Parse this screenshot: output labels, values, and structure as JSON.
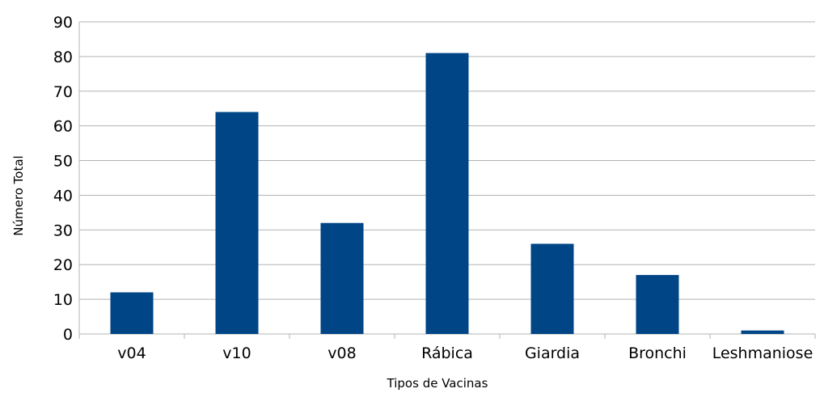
{
  "chart_data": {
    "type": "bar",
    "categories": [
      "v04",
      "v10",
      "v08",
      "Rábica",
      "Giardia",
      "Bronchi",
      "Leshmaniose"
    ],
    "values": [
      12,
      64,
      32,
      81,
      26,
      17,
      1
    ],
    "xlabel": "Tipos de Vacinas",
    "ylabel": "Número Total",
    "ylim": [
      0,
      90
    ],
    "yticks": [
      0,
      10,
      20,
      30,
      40,
      50,
      60,
      70,
      80,
      90
    ],
    "grid": true,
    "bar_color": "#004586"
  }
}
